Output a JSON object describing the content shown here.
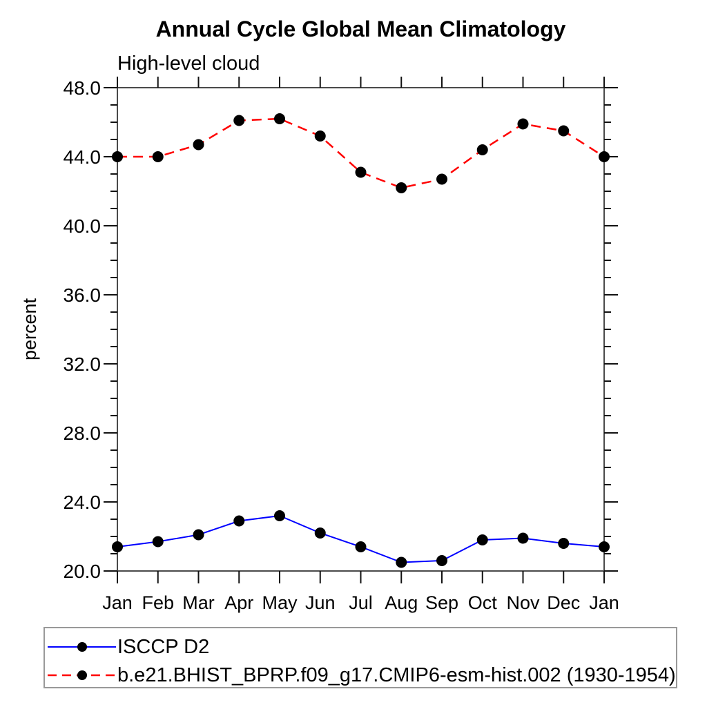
{
  "page": {
    "background": "#ffffff"
  },
  "chart_data": {
    "type": "line",
    "title": "Annual Cycle Global Mean Climatology",
    "subtitle": "High-level cloud",
    "ylabel": "percent",
    "xlabel": "",
    "categories": [
      "Jan",
      "Feb",
      "Mar",
      "Apr",
      "May",
      "Jun",
      "Jul",
      "Aug",
      "Sep",
      "Oct",
      "Nov",
      "Dec",
      "Jan"
    ],
    "ylim": [
      20,
      48
    ],
    "ytick_major_step": 4,
    "ytick_minor_step": 1,
    "ytick_labels": [
      "20.0",
      "24.0",
      "28.0",
      "32.0",
      "36.0",
      "40.0",
      "44.0",
      "48.0"
    ],
    "grid": "off",
    "legend_position": "bottom-left-box",
    "axis_color": "#4a4a4a",
    "tick_color": "#111111",
    "marker_color": "#000000",
    "series": [
      {
        "name": "ISCCP D2",
        "color": "#0000ff",
        "style": "solid",
        "values": [
          21.4,
          21.7,
          22.1,
          22.9,
          23.2,
          22.2,
          21.4,
          20.5,
          20.6,
          21.8,
          21.9,
          21.6,
          21.4
        ]
      },
      {
        "name": "b.e21.BHIST_BPRP.f09_g17.CMIP6-esm-hist.002 (1930-1954)",
        "color": "#ff0000",
        "style": "dashed",
        "values": [
          44.0,
          44.0,
          44.7,
          46.1,
          46.2,
          45.2,
          43.1,
          42.2,
          42.7,
          44.4,
          45.9,
          45.5,
          44.0
        ]
      }
    ]
  }
}
